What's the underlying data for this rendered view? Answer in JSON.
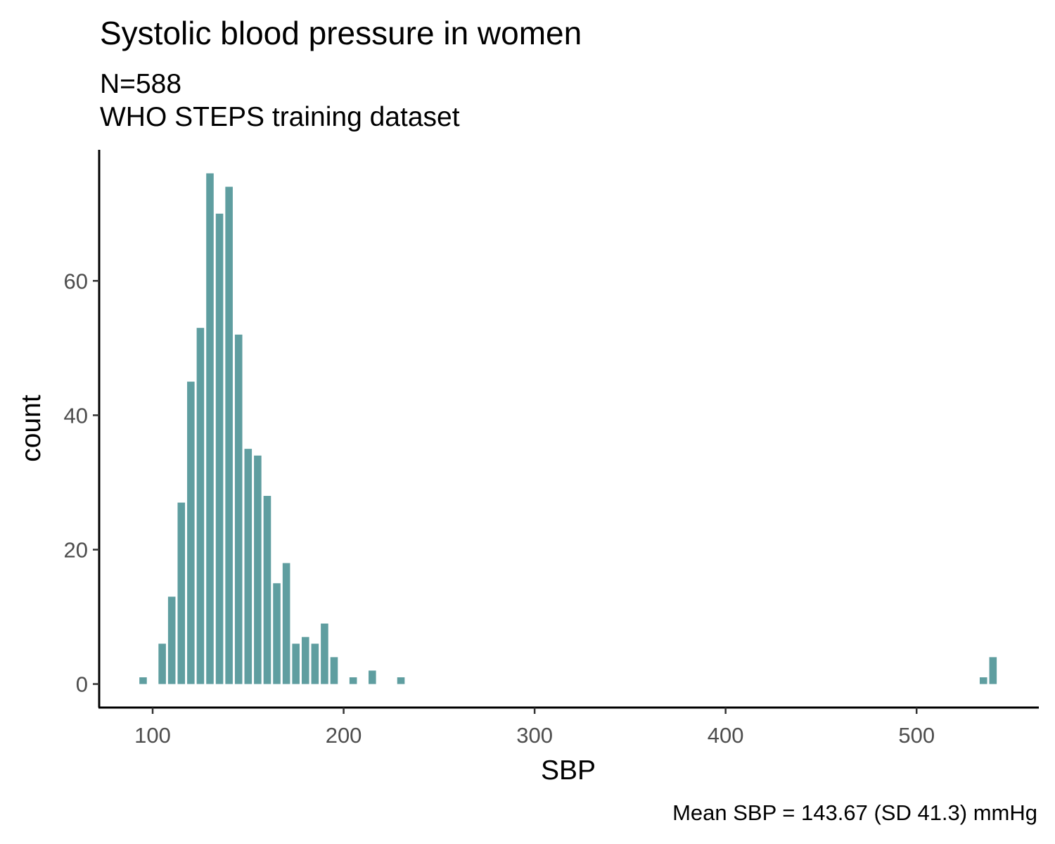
{
  "chart_data": {
    "type": "bar",
    "title": "Systolic blood pressure in women",
    "subtitle": [
      "N=588",
      "WHO STEPS training dataset"
    ],
    "caption": "Mean SBP = 143.67 (SD 41.3) mmHg",
    "xlabel": "SBP",
    "ylabel": "count",
    "xlim": [
      72,
      564
    ],
    "ylim": [
      -3.5,
      79.5
    ],
    "x_ticks": [
      100,
      200,
      300,
      400,
      500
    ],
    "y_ticks": [
      0,
      20,
      40,
      60
    ],
    "bin_width": 5,
    "bar_color": "#5f9ea0",
    "grid": false,
    "x": [
      95,
      100,
      105,
      110,
      115,
      120,
      125,
      130,
      135,
      140,
      145,
      150,
      155,
      160,
      165,
      170,
      175,
      180,
      185,
      190,
      195,
      200,
      205,
      210,
      215,
      220,
      225,
      230,
      535,
      540
    ],
    "values": [
      1,
      0,
      6,
      13,
      27,
      45,
      53,
      76,
      70,
      74,
      52,
      35,
      34,
      28,
      15,
      18,
      6,
      7,
      6,
      9,
      4,
      0,
      1,
      0,
      2,
      0,
      0,
      1,
      1,
      4
    ]
  }
}
